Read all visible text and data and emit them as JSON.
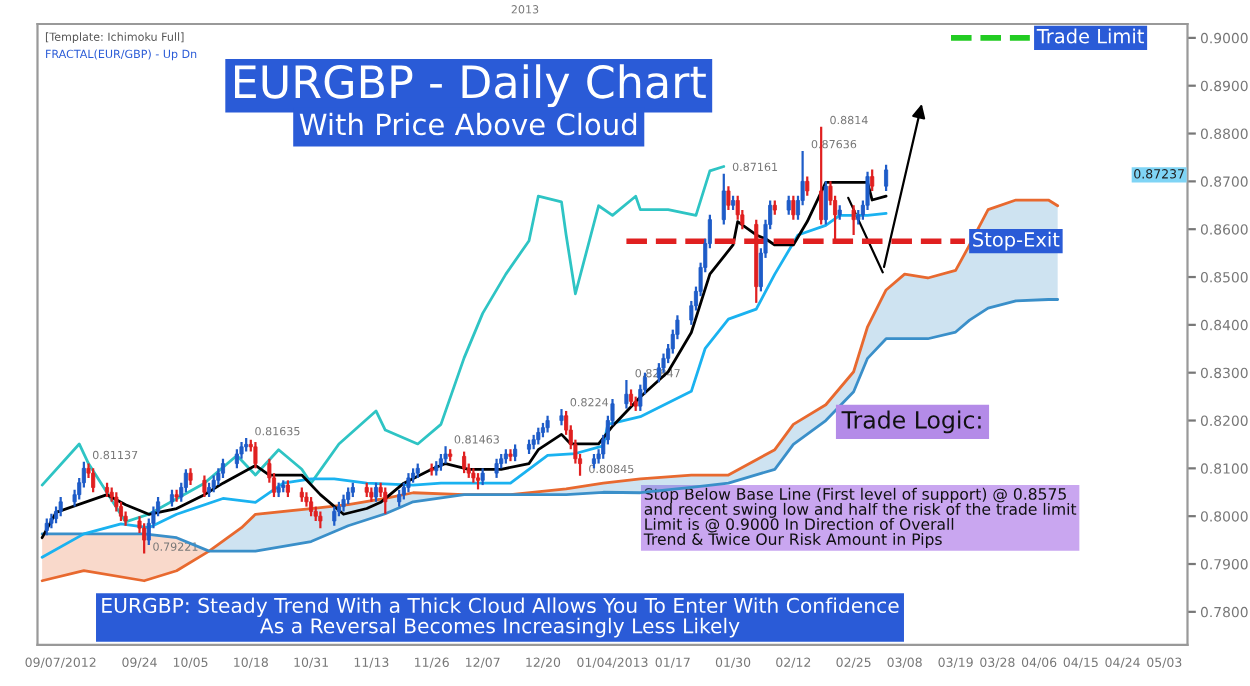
{
  "chart_data": {
    "type": "candlestick",
    "title": "EURGBP - Daily Chart",
    "subtitle": "With Price Above Cloud",
    "colors": [
      "#1e5cc8",
      "#1e5cc8",
      "#1e5cc8",
      "#1e5cc8",
      "#1e5cc8",
      "#1e5cc8",
      "#1e5cc8",
      "#e02020",
      "#e02020",
      "#e02020",
      "#e02020",
      "#e02020",
      "#e02020",
      "#e02020",
      "#e02020",
      "#e02020",
      "#1e5cc8",
      "#1e5cc8",
      "#1e5cc8",
      "#1e5cc8",
      "#e02020",
      "#1e5cc8",
      "#1e5cc8",
      "#e02020",
      "#e02020",
      "#1e5cc8",
      "#1e5cc8",
      "#1e5cc8",
      "#1e5cc8",
      "#1e5cc8",
      "#1e5cc8",
      "#1e5cc8",
      "#e02020",
      "#e02020",
      "#e02020",
      "#e02020",
      "#1e5cc8",
      "#1e5cc8",
      "#e02020",
      "#e02020",
      "#e02020",
      "#e02020",
      "#e02020",
      "#e02020",
      "#1e5cc8",
      "#1e5cc8",
      "#1e5cc8",
      "#1e5cc8",
      "#1e5cc8",
      "#e02020",
      "#e02020",
      "#1e5cc8",
      "#e02020",
      "#e02020",
      "#1e5cc8",
      "#1e5cc8",
      "#1e5cc8",
      "#1e5cc8",
      "#1e5cc8",
      "#e02020",
      "#1e5cc8",
      "#1e5cc8",
      "#1e5cc8",
      "#e02020",
      "#e02020",
      "#e02020",
      "#e02020",
      "#e02020",
      "#1e5cc8",
      "#1e5cc8",
      "#1e5cc8",
      "#1e5cc8",
      "#e02020",
      "#1e5cc8",
      "#1e5cc8",
      "#1e5cc8",
      "#1e5cc8",
      "#1e5cc8",
      "#1e5cc8",
      "#1e5cc8",
      "#e02020",
      "#e02020",
      "#e02020",
      "#e02020",
      "#1e5cc8",
      "#1e5cc8",
      "#1e5cc8",
      "#1e5cc8",
      "#1e5cc8",
      "#1e5cc8",
      "#e02020",
      "#e02020",
      "#1e5cc8",
      "#1e5cc8",
      "#1e5cc8",
      "#1e5cc8",
      "#1e5cc8",
      "#1e5cc8",
      "#1e5cc8",
      "#1e5cc8",
      "#1e5cc8",
      "#1e5cc8",
      "#1e5cc8",
      "#1e5cc8",
      "#1e5cc8",
      "#e02020",
      "#1e5cc8",
      "#e02020",
      "#e02020",
      "#e02020",
      "#1e5cc8",
      "#1e5cc8",
      "#1e5cc8",
      "#e02020",
      "#1e5cc8",
      "#e02020",
      "#1e5cc8",
      "#1e5cc8",
      "#e02020",
      "#e02020",
      "#1e5cc8",
      "#e02020",
      "#e02020",
      "#1e5cc8",
      "#e02020",
      "#1e5cc8",
      "#1e5cc8",
      "#1e5cc8",
      "#e02020",
      "#1e5cc8"
    ],
    "x": [
      "2012-09-04",
      "2012-09-05",
      "2012-09-06",
      "2012-09-07",
      "2012-09-10",
      "2012-09-11",
      "2012-09-12",
      "2012-09-13",
      "2012-09-14",
      "2012-09-17",
      "2012-09-18",
      "2012-09-19",
      "2012-09-20",
      "2012-09-21",
      "2012-09-24",
      "2012-09-25",
      "2012-09-26",
      "2012-09-27",
      "2012-09-28",
      "2012-10-01",
      "2012-10-02",
      "2012-10-03",
      "2012-10-04",
      "2012-10-05",
      "2012-10-08",
      "2012-10-09",
      "2012-10-10",
      "2012-10-11",
      "2012-10-12",
      "2012-10-15",
      "2012-10-16",
      "2012-10-17",
      "2012-10-18",
      "2012-10-19",
      "2012-10-22",
      "2012-10-23",
      "2012-10-24",
      "2012-10-25",
      "2012-10-26",
      "2012-10-29",
      "2012-10-30",
      "2012-10-31",
      "2012-11-01",
      "2012-11-02",
      "2012-11-05",
      "2012-11-06",
      "2012-11-07",
      "2012-11-08",
      "2012-11-09",
      "2012-11-12",
      "2012-11-13",
      "2012-11-14",
      "2012-11-15",
      "2012-11-16",
      "2012-11-19",
      "2012-11-20",
      "2012-11-21",
      "2012-11-22",
      "2012-11-23",
      "2012-11-26",
      "2012-11-27",
      "2012-11-28",
      "2012-11-29",
      "2012-11-30",
      "2012-12-03",
      "2012-12-04",
      "2012-12-05",
      "2012-12-06",
      "2012-12-07",
      "2012-12-10",
      "2012-12-11",
      "2012-12-12",
      "2012-12-13",
      "2012-12-14",
      "2012-12-17",
      "2012-12-18",
      "2012-12-19",
      "2012-12-20",
      "2012-12-21",
      "2012-12-24",
      "2012-12-25",
      "2012-12-26",
      "2012-12-27",
      "2012-12-28",
      "2012-12-31",
      "2013-01-01",
      "2013-01-02",
      "2013-01-03",
      "2013-01-04",
      "2013-01-07",
      "2013-01-08",
      "2013-01-09",
      "2013-01-10",
      "2013-01-11",
      "2013-01-14",
      "2013-01-15",
      "2013-01-16",
      "2013-01-17",
      "2013-01-18",
      "2013-01-21",
      "2013-01-22",
      "2013-01-23",
      "2013-01-24",
      "2013-01-25",
      "2013-01-28",
      "2013-01-29",
      "2013-01-30",
      "2013-01-31",
      "2013-02-01",
      "2013-02-04",
      "2013-02-05",
      "2013-02-06",
      "2013-02-07",
      "2013-02-08",
      "2013-02-11",
      "2013-02-12",
      "2013-02-13",
      "2013-02-14",
      "2013-02-15",
      "2013-02-18",
      "2013-02-19",
      "2013-02-20",
      "2013-02-21",
      "2013-02-22",
      "2013-02-25",
      "2013-02-26",
      "2013-02-27",
      "2013-02-28",
      "2013-03-01",
      "2013-03-04"
    ],
    "ohlc": [
      [
        0.797,
        0.7995,
        0.796,
        0.7985
      ],
      [
        0.7985,
        0.8005,
        0.7975,
        0.7995
      ],
      [
        0.7995,
        0.802,
        0.7985,
        0.801
      ],
      [
        0.801,
        0.804,
        0.8,
        0.803
      ],
      [
        0.803,
        0.8055,
        0.802,
        0.8045
      ],
      [
        0.8045,
        0.808,
        0.8035,
        0.807
      ],
      [
        0.807,
        0.81137,
        0.806,
        0.81
      ],
      [
        0.81,
        0.811,
        0.808,
        0.809
      ],
      [
        0.809,
        0.81,
        0.805,
        0.806
      ],
      [
        0.806,
        0.807,
        0.804,
        0.805
      ],
      [
        0.805,
        0.806,
        0.803,
        0.804
      ],
      [
        0.804,
        0.805,
        0.801,
        0.802
      ],
      [
        0.802,
        0.803,
        0.799,
        0.8
      ],
      [
        0.8,
        0.801,
        0.798,
        0.799
      ],
      [
        0.799,
        0.8,
        0.7965,
        0.7975
      ],
      [
        0.7975,
        0.7985,
        0.79221,
        0.795
      ],
      [
        0.795,
        0.7995,
        0.794,
        0.7985
      ],
      [
        0.7985,
        0.802,
        0.7975,
        0.801
      ],
      [
        0.801,
        0.804,
        0.8,
        0.803
      ],
      [
        0.803,
        0.8055,
        0.802,
        0.8045
      ],
      [
        0.8045,
        0.8055,
        0.803,
        0.804
      ],
      [
        0.804,
        0.807,
        0.803,
        0.806
      ],
      [
        0.806,
        0.8098,
        0.805,
        0.809
      ],
      [
        0.809,
        0.81,
        0.8065,
        0.8075
      ],
      [
        0.8075,
        0.8085,
        0.804,
        0.805
      ],
      [
        0.805,
        0.807,
        0.804,
        0.806
      ],
      [
        0.806,
        0.8085,
        0.805,
        0.8075
      ],
      [
        0.8075,
        0.81,
        0.8065,
        0.809
      ],
      [
        0.809,
        0.812,
        0.808,
        0.811
      ],
      [
        0.811,
        0.814,
        0.81,
        0.813
      ],
      [
        0.813,
        0.8155,
        0.812,
        0.8145
      ],
      [
        0.8145,
        0.81635,
        0.8135,
        0.815
      ],
      [
        0.815,
        0.816,
        0.8135,
        0.8145
      ],
      [
        0.8145,
        0.8155,
        0.81,
        0.811
      ],
      [
        0.811,
        0.812,
        0.807,
        0.808
      ],
      [
        0.808,
        0.809,
        0.804,
        0.805
      ],
      [
        0.805,
        0.807,
        0.804,
        0.806
      ],
      [
        0.806,
        0.8075,
        0.805,
        0.8065
      ],
      [
        0.8065,
        0.8075,
        0.804,
        0.805
      ],
      [
        0.805,
        0.806,
        0.803,
        0.804
      ],
      [
        0.804,
        0.805,
        0.802,
        0.803
      ],
      [
        0.803,
        0.804,
        0.8,
        0.801
      ],
      [
        0.801,
        0.802,
        0.799,
        0.8
      ],
      [
        0.8,
        0.801,
        0.7975,
        0.799
      ],
      [
        0.799,
        0.802,
        0.798,
        0.801
      ],
      [
        0.801,
        0.803,
        0.8,
        0.802
      ],
      [
        0.802,
        0.8045,
        0.801,
        0.8035
      ],
      [
        0.8035,
        0.806,
        0.8025,
        0.805
      ],
      [
        0.805,
        0.807,
        0.804,
        0.806
      ],
      [
        0.806,
        0.807,
        0.804,
        0.805
      ],
      [
        0.805,
        0.806,
        0.803,
        0.804
      ],
      [
        0.804,
        0.807,
        0.803,
        0.806
      ],
      [
        0.806,
        0.807,
        0.804,
        0.805
      ],
      [
        0.805,
        0.806,
        0.8005,
        0.803
      ],
      [
        0.803,
        0.8055,
        0.802,
        0.8045
      ],
      [
        0.8045,
        0.807,
        0.8035,
        0.806
      ],
      [
        0.806,
        0.809,
        0.805,
        0.808
      ],
      [
        0.808,
        0.81,
        0.807,
        0.809
      ],
      [
        0.809,
        0.811,
        0.808,
        0.81
      ],
      [
        0.81,
        0.811,
        0.8085,
        0.8095
      ],
      [
        0.8095,
        0.8115,
        0.8085,
        0.8105
      ],
      [
        0.8105,
        0.813,
        0.8095,
        0.812
      ],
      [
        0.812,
        0.81463,
        0.811,
        0.813
      ],
      [
        0.813,
        0.814,
        0.8115,
        0.8125
      ],
      [
        0.8125,
        0.8135,
        0.809,
        0.81
      ],
      [
        0.81,
        0.811,
        0.808,
        0.809
      ],
      [
        0.809,
        0.81,
        0.807,
        0.808
      ],
      [
        0.808,
        0.809,
        0.8056,
        0.8075
      ],
      [
        0.8075,
        0.81,
        0.8065,
        0.809
      ],
      [
        0.809,
        0.812,
        0.808,
        0.811
      ],
      [
        0.811,
        0.813,
        0.81,
        0.812
      ],
      [
        0.812,
        0.814,
        0.811,
        0.813
      ],
      [
        0.813,
        0.814,
        0.8115,
        0.8125
      ],
      [
        0.8125,
        0.815,
        0.8115,
        0.814
      ],
      [
        0.814,
        0.816,
        0.813,
        0.815
      ],
      [
        0.815,
        0.817,
        0.814,
        0.816
      ],
      [
        0.816,
        0.8185,
        0.815,
        0.8175
      ],
      [
        0.8175,
        0.8195,
        0.8165,
        0.8185
      ],
      [
        0.8185,
        0.821,
        0.8175,
        0.82
      ],
      [
        0.82,
        0.8224,
        0.819,
        0.821
      ],
      [
        0.821,
        0.822,
        0.817,
        0.818
      ],
      [
        0.818,
        0.819,
        0.814,
        0.815
      ],
      [
        0.815,
        0.816,
        0.811,
        0.812
      ],
      [
        0.812,
        0.813,
        0.80845,
        0.811
      ],
      [
        0.811,
        0.813,
        0.81,
        0.812
      ],
      [
        0.812,
        0.814,
        0.811,
        0.813
      ],
      [
        0.813,
        0.817,
        0.812,
        0.816
      ],
      [
        0.816,
        0.821,
        0.815,
        0.82
      ],
      [
        0.82,
        0.8245,
        0.819,
        0.8235
      ],
      [
        0.8235,
        0.82847,
        0.8225,
        0.8255
      ],
      [
        0.8255,
        0.8265,
        0.823,
        0.824
      ],
      [
        0.824,
        0.825,
        0.822,
        0.823
      ],
      [
        0.823,
        0.8275,
        0.822,
        0.8265
      ],
      [
        0.8265,
        0.83,
        0.8255,
        0.829
      ],
      [
        0.829,
        0.832,
        0.828,
        0.831
      ],
      [
        0.831,
        0.834,
        0.83,
        0.833
      ],
      [
        0.833,
        0.836,
        0.832,
        0.835
      ],
      [
        0.835,
        0.839,
        0.834,
        0.838
      ],
      [
        0.838,
        0.842,
        0.837,
        0.841
      ],
      [
        0.841,
        0.845,
        0.84,
        0.844
      ],
      [
        0.844,
        0.848,
        0.843,
        0.847
      ],
      [
        0.847,
        0.853,
        0.846,
        0.852
      ],
      [
        0.852,
        0.858,
        0.851,
        0.857
      ],
      [
        0.857,
        0.863,
        0.856,
        0.862
      ],
      [
        0.862,
        0.87161,
        0.861,
        0.868
      ],
      [
        0.868,
        0.869,
        0.864,
        0.865
      ],
      [
        0.865,
        0.867,
        0.864,
        0.866
      ],
      [
        0.866,
        0.867,
        0.862,
        0.863
      ],
      [
        0.863,
        0.864,
        0.86,
        0.861
      ],
      [
        0.861,
        0.862,
        0.8446,
        0.848
      ],
      [
        0.848,
        0.856,
        0.847,
        0.855
      ],
      [
        0.855,
        0.862,
        0.854,
        0.861
      ],
      [
        0.861,
        0.866,
        0.86,
        0.865
      ],
      [
        0.865,
        0.866,
        0.863,
        0.864
      ],
      [
        0.864,
        0.867,
        0.863,
        0.866
      ],
      [
        0.866,
        0.867,
        0.862,
        0.863
      ],
      [
        0.863,
        0.867,
        0.862,
        0.866
      ],
      [
        0.866,
        0.87636,
        0.865,
        0.87
      ],
      [
        0.87,
        0.871,
        0.867,
        0.868
      ],
      [
        0.868,
        0.8814,
        0.861,
        0.862
      ],
      [
        0.862,
        0.87,
        0.861,
        0.869
      ],
      [
        0.869,
        0.87,
        0.865,
        0.866
      ],
      [
        0.866,
        0.867,
        0.8573,
        0.863
      ],
      [
        0.863,
        0.865,
        0.862,
        0.864
      ],
      [
        0.864,
        0.865,
        0.8588,
        0.862
      ],
      [
        0.862,
        0.864,
        0.861,
        0.863
      ],
      [
        0.863,
        0.866,
        0.862,
        0.865
      ],
      [
        0.865,
        0.872,
        0.864,
        0.871
      ],
      [
        0.871,
        0.8725,
        0.868,
        0.869
      ],
      [
        0.869,
        0.8735,
        0.868,
        0.8724
      ]
    ],
    "series": [
      {
        "type": "line",
        "color": "#e8692f",
        "x": [
          "2012-09-03",
          "2012-09-12",
          "2012-09-25",
          "2012-10-02",
          "2012-10-09",
          "2012-10-16",
          "2012-10-19",
          "2012-10-31",
          "2012-11-08",
          "2012-11-16",
          "2012-11-22",
          "2012-12-03",
          "2012-12-13",
          "2012-12-25",
          "2013-01-02",
          "2013-01-10",
          "2013-01-21",
          "2013-01-29",
          "2013-02-08",
          "2013-02-12",
          "2013-02-19",
          "2013-02-25",
          "2013-02-28",
          "2013-03-04",
          "2013-03-08",
          "2013-03-13",
          "2013-03-19",
          "2013-03-22",
          "2013-03-26",
          "2013-04-01",
          "2013-04-08",
          "2013-04-10"
        ],
        "values": [
          0.7865,
          0.7886,
          0.7865,
          0.7886,
          0.7927,
          0.7976,
          0.8004,
          0.8016,
          0.8024,
          0.8037,
          0.8049,
          0.8045,
          0.8045,
          0.8057,
          0.8069,
          0.8078,
          0.8086,
          0.8086,
          0.8139,
          0.8192,
          0.8233,
          0.8302,
          0.8396,
          0.8473,
          0.8506,
          0.8498,
          0.8514,
          0.8567,
          0.8641,
          0.8661,
          0.8661,
          0.8649
        ],
        "lower": [
          null,
          null,
          null,
          null,
          0.7927,
          0.7927,
          0.7927,
          0.7947,
          0.798,
          0.8005,
          0.803,
          0.8045,
          0.8045,
          0.8045,
          0.805,
          0.8049,
          0.806,
          0.8069,
          0.8098,
          0.815,
          0.82,
          0.826,
          0.833,
          0.8371,
          0.8371,
          0.8371,
          0.8385,
          0.841,
          0.8435,
          0.845,
          0.8453,
          0.8453
        ],
        "upper": [
          null,
          null,
          null,
          null,
          0.7927,
          0.7976,
          0.8004,
          0.8016,
          0.8024,
          0.8037,
          0.8049,
          0.8045,
          0.8045,
          0.8057,
          0.8069,
          0.8078,
          0.8086,
          0.8086,
          0.8139,
          0.8192,
          0.8233,
          0.8302,
          0.8396,
          0.8473,
          0.8506,
          0.8498,
          0.8514,
          0.8567,
          0.8641,
          0.8661,
          0.8661,
          0.8649
        ]
      },
      {
        "type": "line",
        "color": "#3a8fc9",
        "x": [
          "2012-09-03",
          "2012-09-12",
          "2012-09-25",
          "2012-10-02",
          "2012-10-09",
          "2012-10-16",
          "2012-10-19",
          "2012-10-31",
          "2012-11-08",
          "2012-11-16",
          "2012-11-22",
          "2012-12-03",
          "2012-12-13",
          "2012-12-25",
          "2013-01-02",
          "2013-01-10",
          "2013-01-21",
          "2013-01-29",
          "2013-02-08",
          "2013-02-12",
          "2013-02-19",
          "2013-02-25",
          "2013-02-28",
          "2013-03-04",
          "2013-03-08",
          "2013-03-13",
          "2013-03-19",
          "2013-03-22",
          "2013-03-26",
          "2013-04-01",
          "2013-04-08",
          "2013-04-10"
        ],
        "values": [
          0.7963,
          0.7963,
          0.7963,
          0.7955,
          0.7927,
          0.7927,
          0.7927,
          0.7947,
          0.798,
          0.8005,
          0.803,
          0.8045,
          0.8045,
          0.8045,
          0.805,
          0.8049,
          0.806,
          0.8069,
          0.8098,
          0.815,
          0.82,
          0.826,
          0.833,
          0.8371,
          0.8371,
          0.8371,
          0.8385,
          0.841,
          0.8435,
          0.845,
          0.8453,
          0.8453
        ],
        "lower": [
          0.7865,
          0.7886,
          0.7865,
          0.7886,
          0.7927,
          null,
          null,
          null,
          null,
          null,
          null,
          null,
          null,
          null,
          null,
          null,
          null,
          null,
          null,
          null,
          null,
          null,
          null,
          null,
          null,
          null,
          null,
          null,
          null,
          null,
          null,
          null
        ],
        "upper": [
          0.7963,
          0.7963,
          0.7963,
          0.7955,
          0.7927,
          null,
          null,
          null,
          null,
          null,
          null,
          null,
          null,
          null,
          null,
          null,
          null,
          null,
          null,
          null,
          null,
          null,
          null,
          null,
          null,
          null,
          null,
          null,
          null,
          null,
          null,
          null
        ]
      },
      {
        "type": "line",
        "color": "#2ec4c4",
        "x": [
          "2012-09-03",
          "2012-09-11",
          "2012-09-13",
          "2012-09-21",
          "2012-09-26",
          "2012-10-08",
          "2012-10-15",
          "2012-10-19",
          "2012-10-24",
          "2012-10-29",
          "2012-10-31",
          "2012-11-06",
          "2012-11-14",
          "2012-11-16",
          "2012-11-23",
          "2012-11-28",
          "2012-12-03",
          "2012-12-07",
          "2012-12-12",
          "2012-12-17",
          "2012-12-19",
          "2012-12-24",
          "2012-12-25",
          "2012-12-27",
          "2013-01-01",
          "2013-01-04",
          "2013-01-09",
          "2013-01-10",
          "2013-01-16",
          "2013-01-22",
          "2013-01-25",
          "2013-01-28"
        ],
        "values": [
          0.8065,
          0.8151,
          0.811,
          0.7988,
          0.8004,
          0.8069,
          0.8127,
          0.8086,
          0.8139,
          0.8098,
          0.8069,
          0.8151,
          0.822,
          0.818,
          0.8151,
          0.8192,
          0.8331,
          0.8424,
          0.8506,
          0.8576,
          0.8669,
          0.8657,
          0.8588,
          0.8465,
          0.8649,
          0.8629,
          0.8669,
          0.8641,
          0.8641,
          0.8629,
          0.8722,
          0.8731
        ]
      },
      {
        "type": "line",
        "color": "#1ab2f0",
        "x": [
          "2012-09-03",
          "2012-09-12",
          "2012-09-20",
          "2012-09-26",
          "2012-10-02",
          "2012-10-12",
          "2012-10-19",
          "2012-10-25",
          "2012-10-31",
          "2012-11-05",
          "2012-11-12",
          "2012-11-22",
          "2012-11-28",
          "2012-12-13",
          "2012-12-21",
          "2012-12-27",
          "2013-01-02",
          "2013-01-03",
          "2013-01-10",
          "2013-01-21",
          "2013-01-24",
          "2013-01-29",
          "2013-02-04",
          "2013-02-08",
          "2013-02-13",
          "2013-02-19",
          "2013-02-22",
          "2013-02-28",
          "2013-03-04"
        ],
        "values": [
          0.7914,
          0.7963,
          0.7984,
          0.7976,
          0.8004,
          0.8037,
          0.8029,
          0.8069,
          0.8078,
          0.8078,
          0.8069,
          0.8065,
          0.8069,
          0.8069,
          0.8127,
          0.8131,
          0.8147,
          0.8192,
          0.8208,
          0.8261,
          0.8351,
          0.8412,
          0.8433,
          0.8506,
          0.8588,
          0.8608,
          0.8629,
          0.8629,
          0.8633
        ]
      },
      {
        "type": "line",
        "color": "#000000",
        "x": [
          "2012-09-03",
          "2012-09-06",
          "2012-09-17",
          "2012-09-21",
          "2012-09-26",
          "2012-10-02",
          "2012-10-08",
          "2012-10-12",
          "2012-10-19",
          "2012-10-22",
          "2012-10-29",
          "2012-11-02",
          "2012-11-07",
          "2012-11-12",
          "2012-11-15",
          "2012-11-20",
          "2012-11-26",
          "2012-11-29",
          "2012-12-04",
          "2012-12-11",
          "2012-12-17",
          "2012-12-19",
          "2012-12-24",
          "2012-12-26",
          "2013-01-01",
          "2013-01-04",
          "2013-01-10",
          "2013-01-16",
          "2013-01-21",
          "2013-01-25",
          "2013-01-30",
          "2013-01-31",
          "2013-02-04",
          "2013-02-06",
          "2013-02-08",
          "2013-02-12",
          "2013-02-15",
          "2013-02-19",
          "2013-02-28",
          "2013-03-01",
          "2013-03-04"
        ],
        "values": [
          0.7955,
          0.8008,
          0.8045,
          0.8024,
          0.8004,
          0.8016,
          0.8045,
          0.8069,
          0.8106,
          0.8086,
          0.8086,
          0.8045,
          0.8004,
          0.8016,
          0.8029,
          0.8069,
          0.8098,
          0.811,
          0.8098,
          0.8098,
          0.811,
          0.8139,
          0.8171,
          0.8151,
          0.8151,
          0.8188,
          0.8249,
          0.8302,
          0.8384,
          0.8506,
          0.8567,
          0.8616,
          0.8588,
          0.858,
          0.8567,
          0.8567,
          0.8616,
          0.8698,
          0.8698,
          0.8661,
          0.8669
        ]
      },
      {
        "type": "line",
        "name": "Trade Limit",
        "color": "#22cc22",
        "line_style": "dashed",
        "x": [
          "2013-03-18",
          "2013-04-04"
        ],
        "values": [
          0.9,
          0.9
        ]
      },
      {
        "type": "line",
        "name": "Stop-Exit",
        "color": "#e02020",
        "line_style": "dashed",
        "x": [
          "2013-01-07",
          "2013-03-21"
        ],
        "values": [
          0.8575,
          0.8575
        ]
      }
    ],
    "xlim": [
      "2012-09-02",
      "2013-05-08"
    ],
    "xticks": [
      {
        "value": "2012-09-07",
        "label": "09/07/2012"
      },
      {
        "value": "2012-09-24",
        "label": "09/24"
      },
      {
        "value": "2012-10-05",
        "label": "10/05"
      },
      {
        "value": "2012-10-18",
        "label": "10/18"
      },
      {
        "value": "2012-10-31",
        "label": "10/31"
      },
      {
        "value": "2012-11-13",
        "label": "11/13"
      },
      {
        "value": "2012-11-26",
        "label": "11/26"
      },
      {
        "value": "2012-12-07",
        "label": "12/07"
      },
      {
        "value": "2012-12-20",
        "label": "12/20"
      },
      {
        "value": "2013-01-04",
        "label": "01/04/2013"
      },
      {
        "value": "2013-01-17",
        "label": "01/17"
      },
      {
        "value": "2013-01-30",
        "label": "01/30"
      },
      {
        "value": "2013-02-12",
        "label": "02/12"
      },
      {
        "value": "2013-02-25",
        "label": "02/25"
      },
      {
        "value": "2013-03-08",
        "label": "03/08"
      },
      {
        "value": "2013-03-19",
        "label": "03/19"
      },
      {
        "value": "2013-03-28",
        "label": "03/28"
      },
      {
        "value": "2013-04-06",
        "label": "04/06"
      },
      {
        "value": "2013-04-15",
        "label": "04/15"
      },
      {
        "value": "2013-04-24",
        "label": "04/24"
      },
      {
        "value": "2013-05-03",
        "label": "05/03"
      }
    ],
    "ylim": [
      0.7731,
      0.9029
    ],
    "yticks": [
      {
        "value": 0.78,
        "label": "0.7800"
      },
      {
        "value": 0.79,
        "label": "0.7900"
      },
      {
        "value": 0.8,
        "label": "0.8000"
      },
      {
        "value": 0.81,
        "label": "0.8100"
      },
      {
        "value": 0.82,
        "label": "0.8200"
      },
      {
        "value": 0.83,
        "label": "0.8300"
      },
      {
        "value": 0.84,
        "label": "0.8400"
      },
      {
        "value": 0.85,
        "label": "0.8500"
      },
      {
        "value": 0.86,
        "label": "0.8600"
      },
      {
        "value": 0.87,
        "label": "0.8700"
      },
      {
        "value": 0.88,
        "label": "0.8800"
      },
      {
        "value": 0.89,
        "label": "0.8900"
      },
      {
        "value": 0.9,
        "label": "0.9000"
      }
    ],
    "annotations": [
      {
        "text": "0.81137",
        "x": "2012-09-12",
        "y": 0.81137
      },
      {
        "text": "0.79221",
        "x": "2012-09-25",
        "y": 0.79221
      },
      {
        "text": "0.81635",
        "x": "2012-10-17",
        "y": 0.81635
      },
      {
        "text": "0.81463",
        "x": "2012-11-29",
        "y": 0.81463
      },
      {
        "text": "0.8224",
        "x": "2012-12-24",
        "y": 0.8224
      },
      {
        "text": "0.80845",
        "x": "2012-12-28",
        "y": 0.80845
      },
      {
        "text": "0.82847",
        "x": "2013-01-07",
        "y": 0.82847
      },
      {
        "text": "0.87161",
        "x": "2013-01-28",
        "y": 0.87161
      },
      {
        "text": "0.87636",
        "x": "2013-02-14",
        "y": 0.87636
      },
      {
        "text": "0.8814",
        "x": "2013-02-18",
        "y": 0.8814
      },
      "0.87237",
      "2013",
      "[Template: Ichimoku Full]",
      "FRACTAL(EUR/GBP) - Up Dn",
      "Trade Logic:",
      "Stop Below Base Line (First level of support) @ 0.8575\nand recent swing low and half the risk of the trade limit\nLimit is @ 0.9000 In Direction of Overall\nTrend & Twice Our Risk Amount in Pips",
      "EURGBP: Steady Trend With a Thick Cloud Allows You To Enter With Confidence\nAs a Reversal Becomes Increasingly Less Likely"
    ]
  }
}
